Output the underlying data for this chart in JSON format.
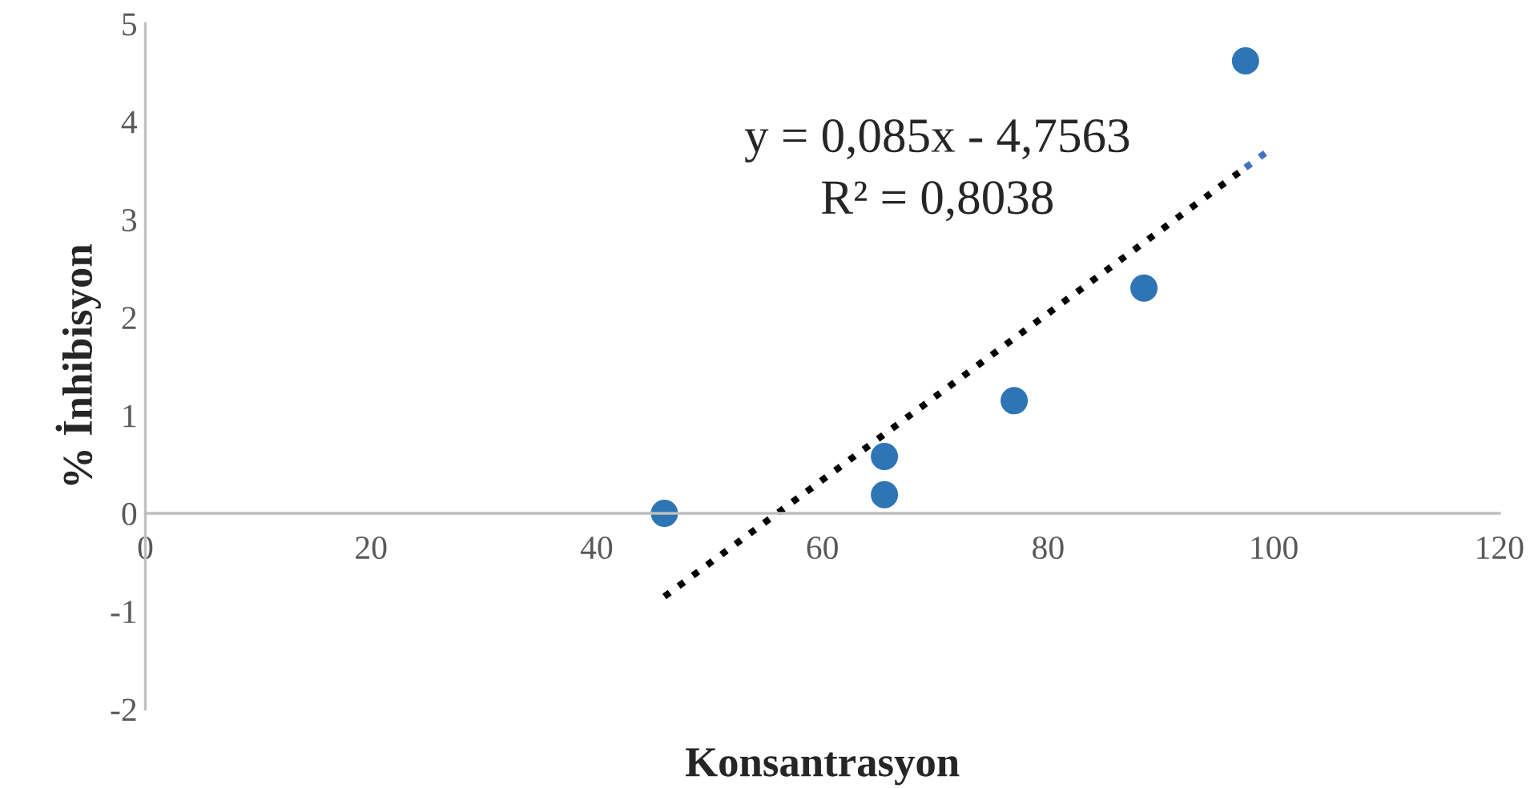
{
  "chart_data": {
    "type": "scatter",
    "xlabel": "Konsantrasyon",
    "ylabel": "% İnhibisyon",
    "series": [
      {
        "color": "#2e75b6",
        "marker": "circle",
        "x": [
          46,
          65.5,
          65.5,
          77,
          88.5,
          97.5
        ],
        "values": [
          0,
          0.58,
          0.19,
          1.15,
          2.3,
          4.62
        ]
      },
      {
        "type": "line",
        "color": "#000000",
        "line_style": "dotted",
        "marker": "none",
        "x": [
          46,
          97.5
        ],
        "values": [
          -0.85,
          3.53
        ]
      },
      {
        "type": "line",
        "color": "#4472c4",
        "line_style": "dotted",
        "marker": "none",
        "x": [
          97.5,
          99.5
        ],
        "values": [
          3.53,
          3.7
        ]
      }
    ],
    "annotations": [
      "y = 0,085x - 4,7563",
      "R² = 0,8038"
    ],
    "xlim": [
      0,
      120
    ],
    "xticks": [
      0,
      20,
      40,
      60,
      80,
      100,
      120
    ],
    "ylim": [
      -2,
      5
    ],
    "yticks": [
      -2,
      -1,
      0,
      1,
      2,
      3,
      4,
      5
    ],
    "grid": false,
    "legend": false
  }
}
